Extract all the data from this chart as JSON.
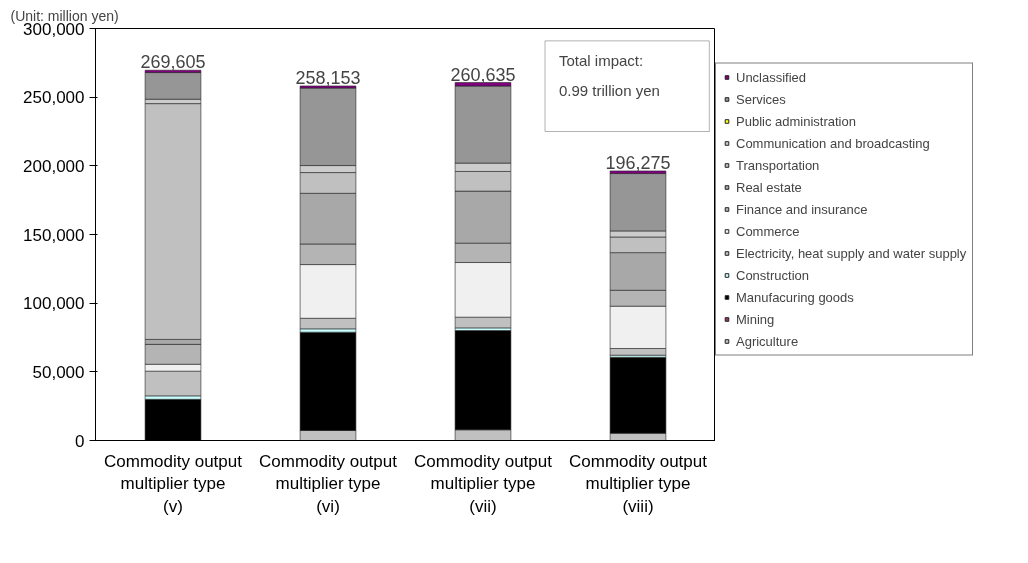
{
  "chart_data": {
    "type": "bar",
    "stacked": true,
    "ylabel": "(Unit: million yen)",
    "categories": [
      "Commodity output multiplier type (v)",
      "Commodity output multiplier type (vi)",
      "Commodity output multiplier type (vii)",
      "Commodity output multiplier type (viii)"
    ],
    "series": [
      {
        "name": "Agriculture",
        "color": "#c0c0c0",
        "values": [
          null,
          7300,
          7800,
          5300
        ]
      },
      {
        "name": "Mining",
        "color": "#993366",
        "values": [
          null,
          null,
          null,
          null
        ]
      },
      {
        "name": "Manufacuring goods",
        "color": "#000000",
        "values": [
          30000,
          71600,
          72300,
          55300
        ]
      },
      {
        "name": "Construction",
        "color": "#ccffff",
        "values": [
          2500,
          2400,
          1900,
          1500
        ]
      },
      {
        "name": "Electricity, heat supply and water supply",
        "color": "#c0c0c0",
        "values": [
          18000,
          7700,
          7800,
          4900
        ]
      },
      {
        "name": "Commerce",
        "color": "#f0f0f0",
        "values": [
          5000,
          39100,
          39800,
          30800
        ]
      },
      {
        "name": "Finance and insurance",
        "color": "#b4b4b4",
        "values": [
          14500,
          15000,
          14100,
          11600
        ]
      },
      {
        "name": "Real estate",
        "color": "#a8a8a8",
        "values": [
          3600,
          36900,
          37900,
          27400
        ]
      },
      {
        "name": "Transportation",
        "color": "#c0c0c0",
        "values": [
          171705,
          15100,
          14300,
          11400
        ]
      },
      {
        "name": "Communication and broadcasting",
        "color": "#cccccc",
        "values": [
          3200,
          5100,
          6100,
          4400
        ]
      },
      {
        "name": "Public administration",
        "color": "#ffff00",
        "values": [
          null,
          null,
          null,
          null
        ]
      },
      {
        "name": "Services",
        "color": "#969696",
        "values": [
          19400,
          56453,
          56135,
          41775
        ]
      },
      {
        "name": "Unclassified",
        "color": "#800080",
        "values": [
          1700,
          1500,
          2500,
          1900
        ]
      }
    ],
    "totals": [
      "269,605",
      "258,153",
      "260,635",
      "196,275"
    ],
    "annotations": [
      "Total impact:",
      "0.99 trillion yen"
    ],
    "ylim": [
      0,
      300000
    ],
    "yticks": [
      {
        "value": 0,
        "label": "0"
      },
      {
        "value": 50000,
        "label": "50,000"
      },
      {
        "value": 100000,
        "label": "100,000"
      },
      {
        "value": 150000,
        "label": "150,000"
      },
      {
        "value": 200000,
        "label": "200,000"
      },
      {
        "value": 250000,
        "label": "250,000"
      },
      {
        "value": 300000,
        "label": "300,000"
      }
    ],
    "grid": false,
    "legend": "right"
  }
}
